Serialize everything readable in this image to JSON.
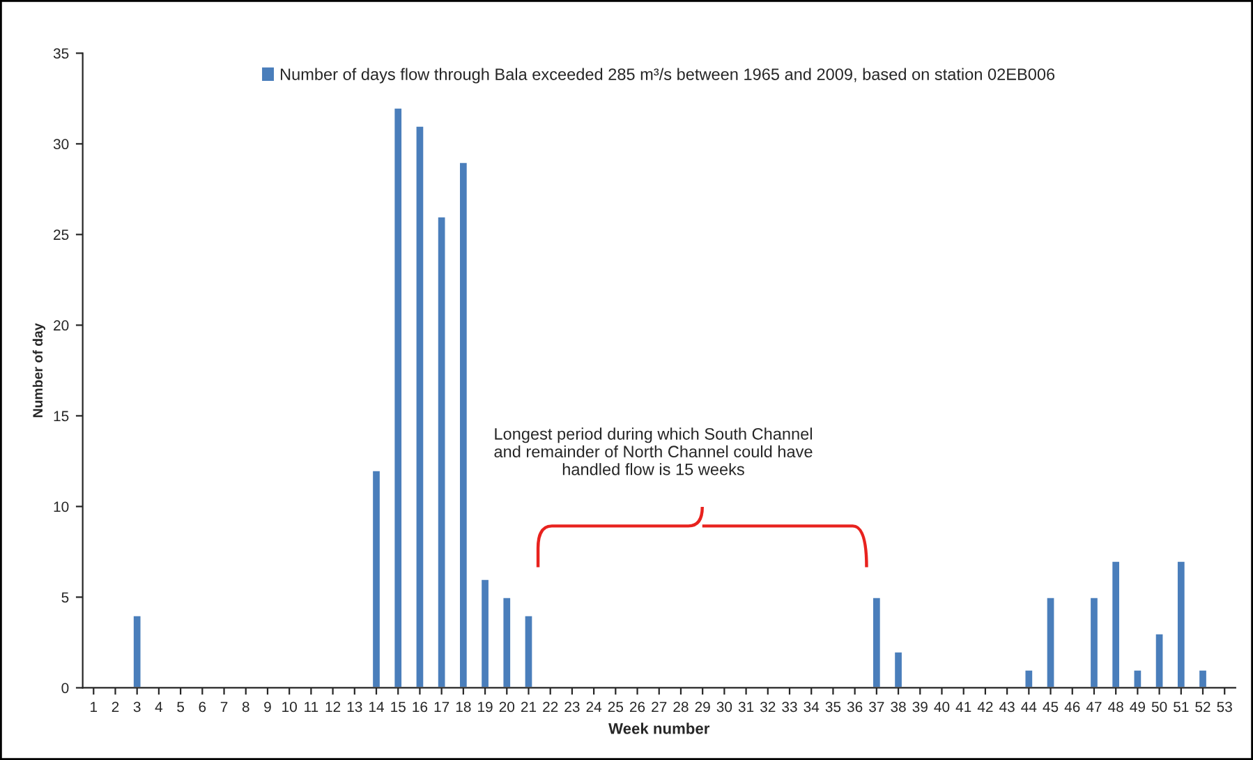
{
  "chart_data": {
    "type": "bar",
    "categories": [
      "1",
      "2",
      "3",
      "4",
      "5",
      "6",
      "7",
      "8",
      "9",
      "10",
      "11",
      "12",
      "13",
      "14",
      "15",
      "16",
      "17",
      "18",
      "19",
      "20",
      "21",
      "22",
      "23",
      "24",
      "25",
      "26",
      "27",
      "28",
      "29",
      "30",
      "31",
      "32",
      "33",
      "34",
      "35",
      "36",
      "37",
      "38",
      "39",
      "40",
      "41",
      "42",
      "43",
      "44",
      "45",
      "46",
      "47",
      "48",
      "49",
      "50",
      "51",
      "52",
      "53"
    ],
    "series": [
      {
        "name": "Number of days flow through Bala exceeded 285 m³/s between 1965 and 2009, based on station 02EB006",
        "color": "#4a7ebb",
        "values": [
          0,
          0,
          4,
          0,
          0,
          0,
          0,
          0,
          0,
          0,
          0,
          0,
          0,
          12,
          32,
          31,
          26,
          29,
          6,
          5,
          4,
          0,
          0,
          0,
          0,
          0,
          0,
          0,
          0,
          0,
          0,
          0,
          0,
          0,
          0,
          0,
          5,
          2,
          0,
          0,
          0,
          0,
          0,
          1,
          5,
          0,
          5,
          7,
          1,
          3,
          7,
          1,
          0
        ]
      }
    ],
    "xlabel": "Week number",
    "ylabel": "Number of day",
    "ylim": [
      0,
      35
    ],
    "yticks": [
      0,
      5,
      10,
      15,
      20,
      25,
      30,
      35
    ],
    "grid": false,
    "legend": "top",
    "annotations": [
      "Longest period during which South Channel\nand remainder of North Channel could have\nhandled flow is 15 weeks"
    ]
  }
}
